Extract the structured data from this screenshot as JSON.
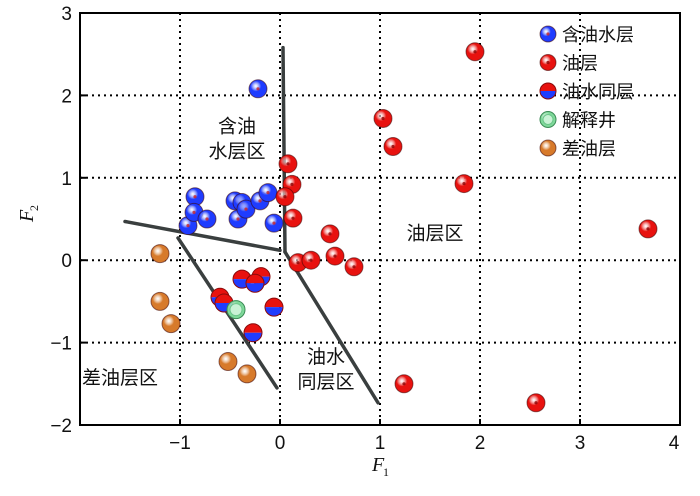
{
  "chart_data": {
    "type": "scatter",
    "xlabel": "F",
    "xlabel_sub": "1",
    "ylabel": "F",
    "ylabel_sub": "2",
    "xlim": [
      -2,
      4
    ],
    "ylim": [
      -2,
      3
    ],
    "x_ticks": [
      "−1",
      "0",
      "1",
      "2",
      "3",
      "4"
    ],
    "y_ticks": [
      "3",
      "2",
      "1",
      "0",
      "−1",
      "−2"
    ],
    "grid": "dotted",
    "legend_position": "top-right",
    "series": [
      {
        "name": "含油水层",
        "color": "#1f3cff",
        "points": [
          [
            -0.22,
            2.08
          ],
          [
            -0.92,
            0.42
          ],
          [
            -0.85,
            0.77
          ],
          [
            -0.86,
            0.58
          ],
          [
            -0.73,
            0.5
          ],
          [
            -0.45,
            0.72
          ],
          [
            -0.38,
            0.7
          ],
          [
            -0.42,
            0.5
          ],
          [
            -0.34,
            0.62
          ],
          [
            -0.2,
            0.72
          ],
          [
            -0.12,
            0.82
          ],
          [
            -0.06,
            0.45
          ]
        ]
      },
      {
        "name": "油层",
        "color": "#e8120f",
        "points": [
          [
            1.95,
            2.53
          ],
          [
            1.03,
            1.72
          ],
          [
            1.13,
            1.38
          ],
          [
            0.08,
            1.17
          ],
          [
            0.12,
            0.92
          ],
          [
            1.84,
            0.93
          ],
          [
            0.05,
            0.77
          ],
          [
            0.13,
            0.51
          ],
          [
            0.5,
            0.32
          ],
          [
            0.55,
            0.05
          ],
          [
            0.18,
            -0.03
          ],
          [
            0.31,
            0.0
          ],
          [
            0.74,
            -0.08
          ],
          [
            3.68,
            0.38
          ],
          [
            1.24,
            -1.5
          ],
          [
            2.56,
            -1.73
          ]
        ]
      },
      {
        "name": "油水同层",
        "color": "#e8120f",
        "color2": "#1f3cff",
        "points": [
          [
            -0.38,
            -0.23
          ],
          [
            -0.19,
            -0.2
          ],
          [
            -0.25,
            -0.28
          ],
          [
            -0.6,
            -0.45
          ],
          [
            -0.06,
            -0.57
          ],
          [
            -0.27,
            -0.88
          ],
          [
            -0.56,
            -0.52
          ]
        ]
      },
      {
        "name": "解释井",
        "color": "#7fd99a",
        "points": [
          [
            -0.44,
            -0.6
          ]
        ]
      },
      {
        "name": "差油层",
        "color": "#d77a2b",
        "points": [
          [
            -1.2,
            0.08
          ],
          [
            -1.2,
            -0.5
          ],
          [
            -1.09,
            -0.77
          ],
          [
            -0.52,
            -1.23
          ],
          [
            -0.33,
            -1.38
          ]
        ]
      }
    ],
    "boundary_lines": [
      [
        [
          0.03,
          2.58
        ],
        [
          0.05,
          0.1
        ]
      ],
      [
        [
          -1.55,
          0.47
        ],
        [
          0.0,
          0.12
        ]
      ],
      [
        [
          -1.02,
          0.27
        ],
        [
          -0.03,
          -1.55
        ]
      ],
      [
        [
          0.05,
          0.1
        ],
        [
          0.98,
          -1.73
        ]
      ]
    ],
    "region_labels": [
      {
        "lines": [
          "含油",
          "水层区"
        ],
        "x": -0.43,
        "y": 1.55
      },
      {
        "lines": [
          "油层区"
        ],
        "x": 1.55,
        "y": 0.25
      },
      {
        "lines": [
          "差油层区"
        ],
        "x": -1.6,
        "y": -1.5
      },
      {
        "lines": [
          "油水",
          "同层区"
        ],
        "x": 0.46,
        "y": -1.25
      }
    ]
  }
}
